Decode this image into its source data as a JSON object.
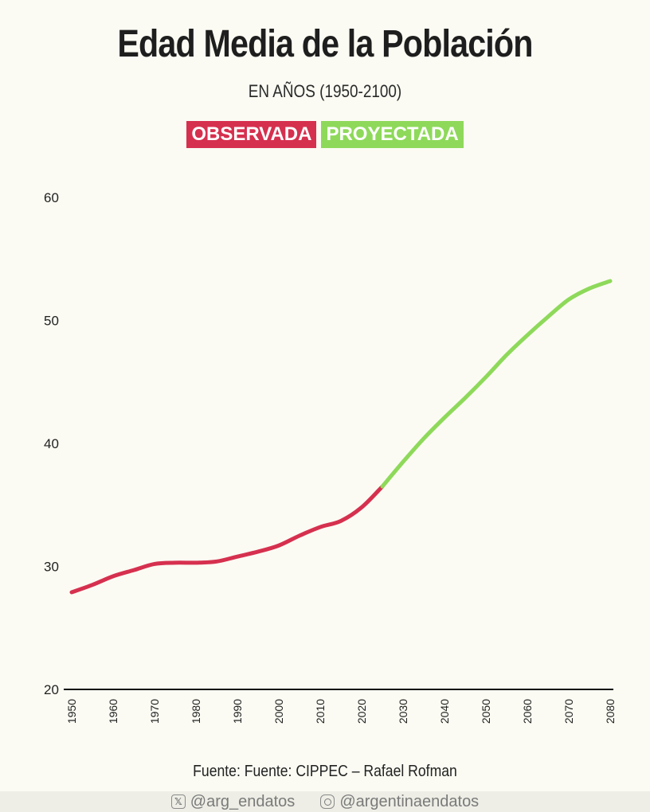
{
  "title": "Edad Media de la Población",
  "subtitle": "EN AÑOS (1950-2100)",
  "legend": [
    {
      "label": "OBSERVADA",
      "color": "#d6304f"
    },
    {
      "label": "PROYECTADA",
      "color": "#8ed95a"
    }
  ],
  "source": "Fuente: Fuente: CIPPEC – Rafael Rofman",
  "footer": {
    "twitter_handle": "@arg_endatos",
    "instagram_handle": "@argentinaendatos",
    "twitter_icon": "x-logo-icon",
    "instagram_icon": "instagram-icon"
  },
  "chart_data": {
    "type": "line",
    "ylim": [
      20,
      60
    ],
    "yticks": [
      20,
      30,
      40,
      50,
      60
    ],
    "xlim": [
      1950,
      2080
    ],
    "xticks": [
      "1950",
      "1960",
      "1970",
      "1980",
      "1990",
      "2000",
      "2010",
      "2020",
      "2030",
      "2040",
      "2050",
      "2060",
      "2070",
      "2080"
    ],
    "grid": false,
    "series": [
      {
        "name": "OBSERVADA",
        "color": "#d6304f",
        "x": [
          1950,
          1955,
          1960,
          1965,
          1970,
          1975,
          1980,
          1985,
          1990,
          1995,
          2000,
          2005,
          2010,
          2015,
          2020,
          2025
        ],
        "y": [
          27.9,
          28.5,
          29.2,
          29.7,
          30.2,
          30.3,
          30.3,
          30.4,
          30.8,
          31.2,
          31.7,
          32.5,
          33.2,
          33.7,
          34.8,
          36.5
        ]
      },
      {
        "name": "PROYECTADA",
        "color": "#8ed95a",
        "x": [
          2025,
          2030,
          2035,
          2040,
          2045,
          2050,
          2055,
          2060,
          2065,
          2070,
          2075,
          2080
        ],
        "y": [
          36.5,
          38.5,
          40.4,
          42.1,
          43.7,
          45.4,
          47.2,
          48.8,
          50.3,
          51.7,
          52.6,
          53.2
        ]
      }
    ]
  }
}
